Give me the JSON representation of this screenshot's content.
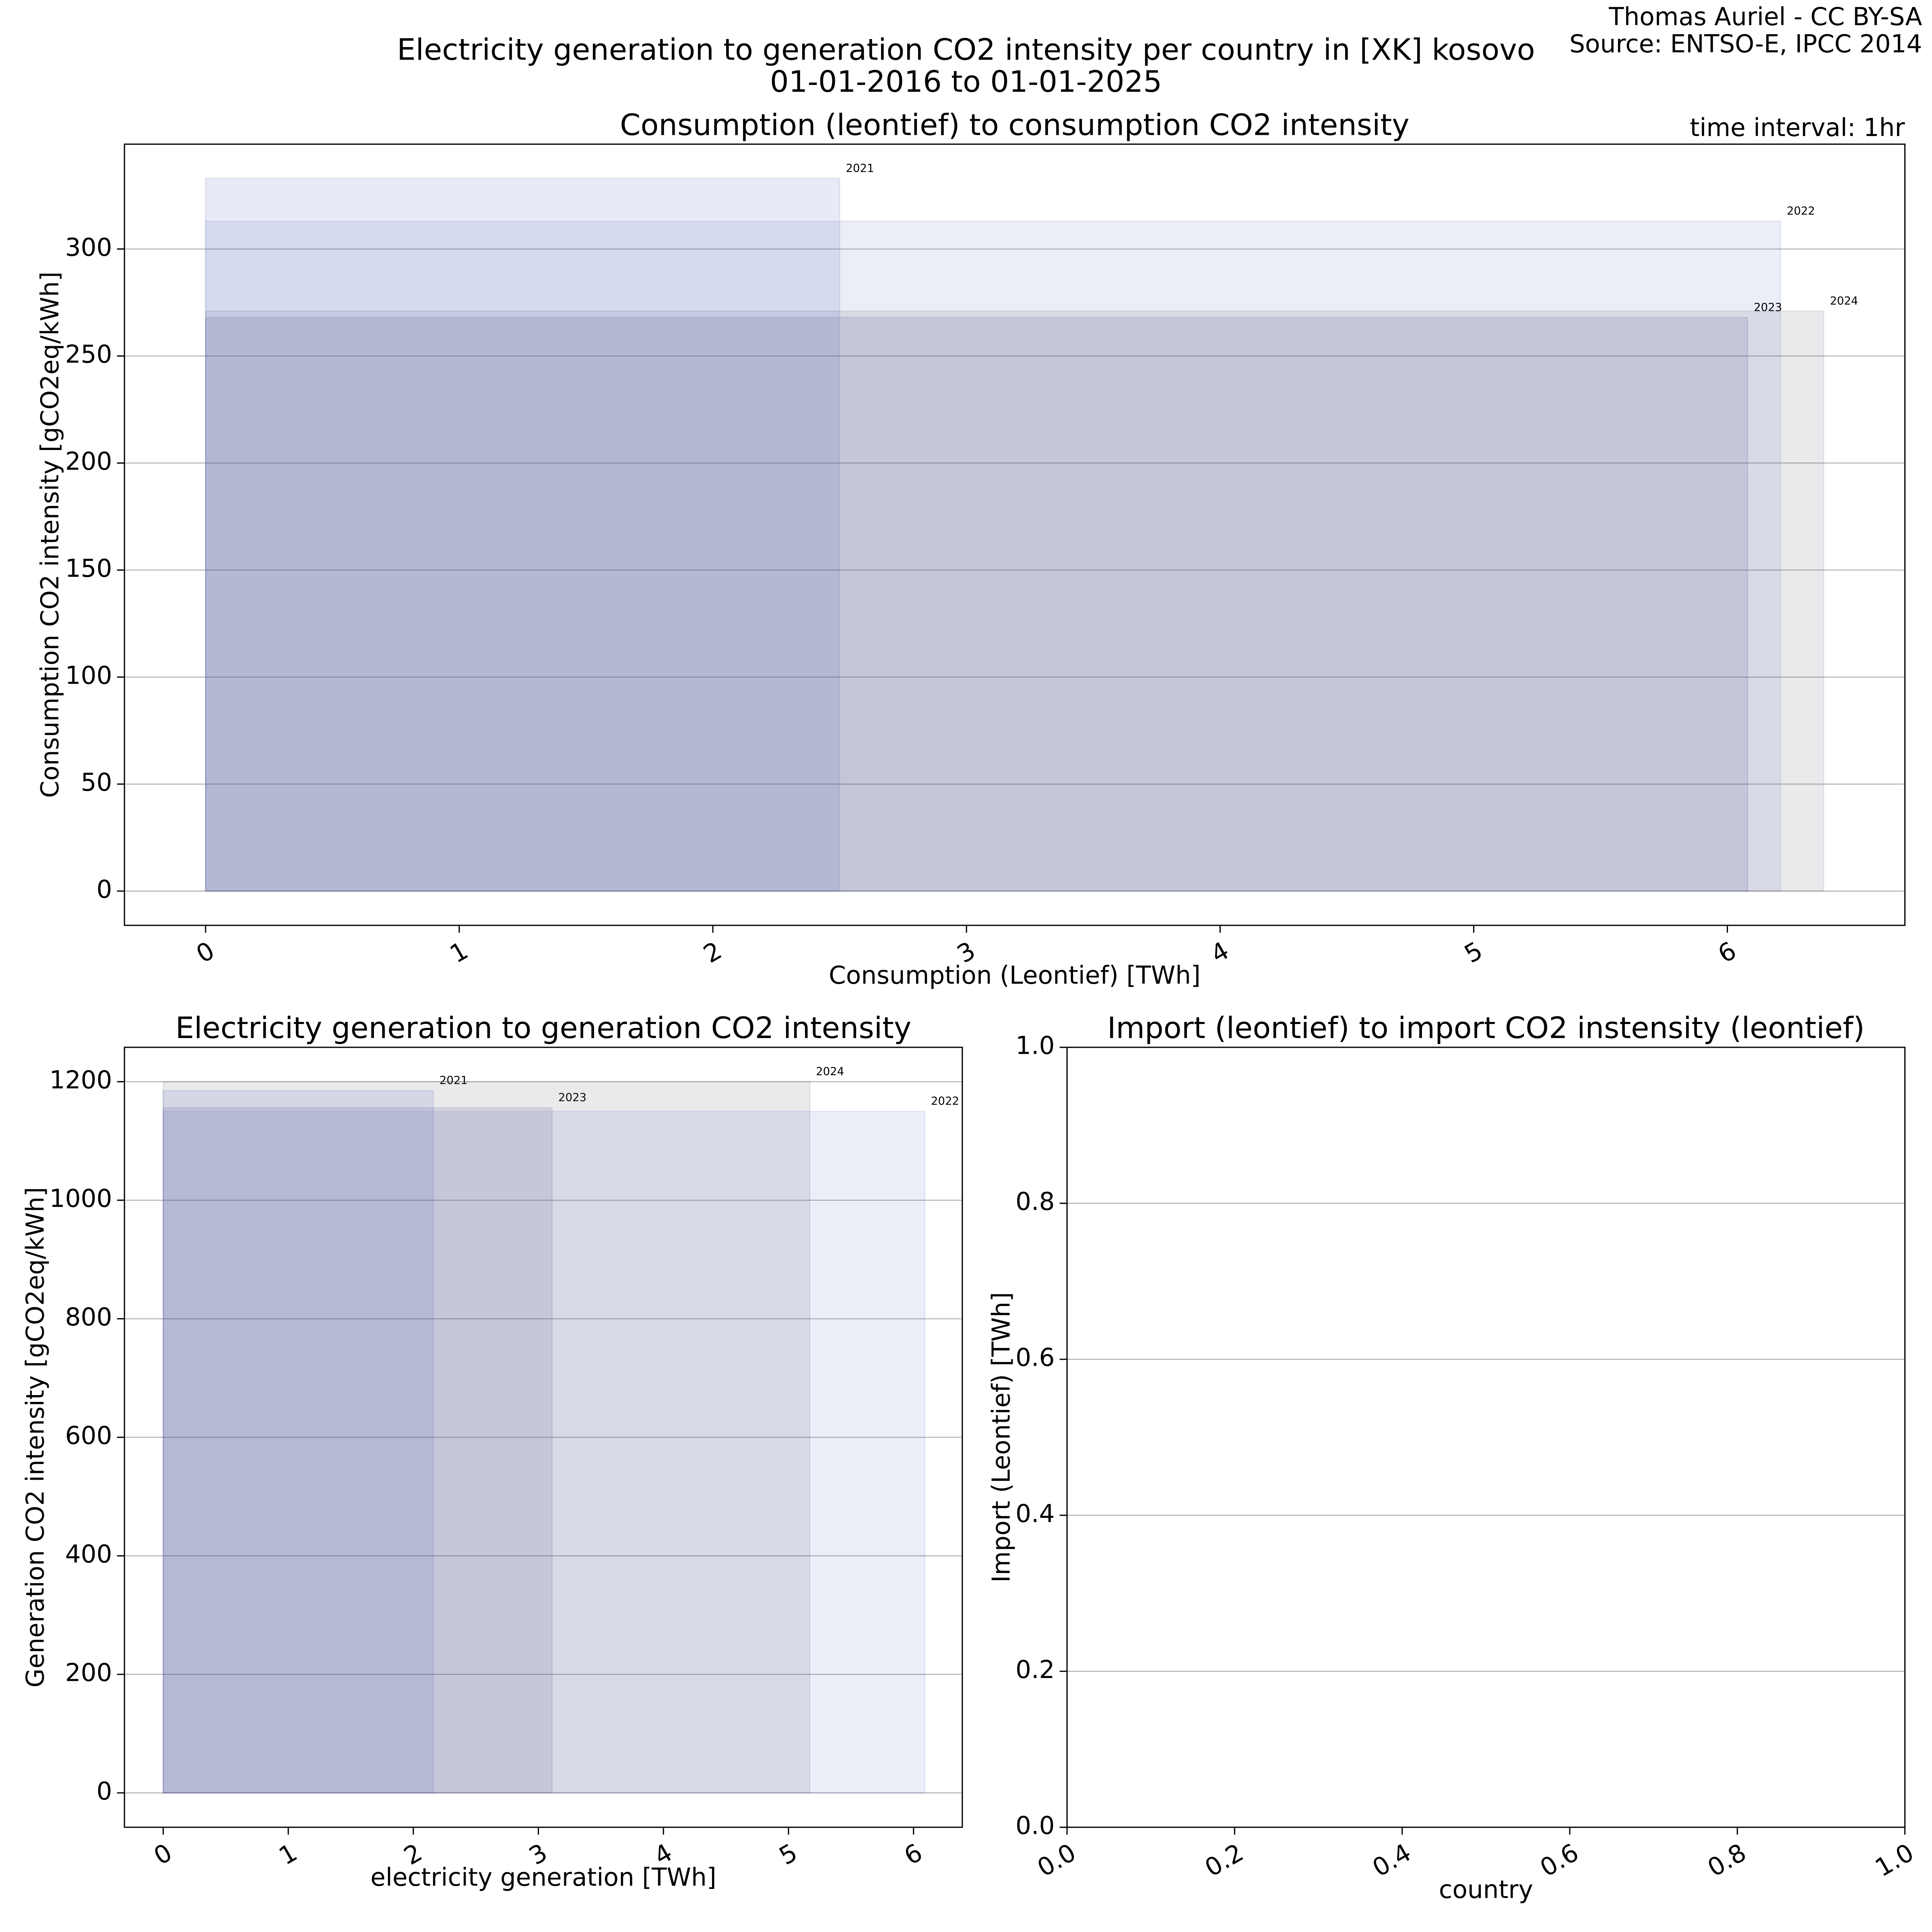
{
  "title": "Electricity generation to generation CO2 intensity per country in [XK] kosovo",
  "subtitle": "01-01-2016 to 01-01-2025",
  "credit": "Thomas Auriel - CC BY-SA",
  "source": "Source: ENTSO-E, IPCC 2014",
  "time_interval": "time interval: 1hr",
  "chart_data": [
    {
      "type": "bar",
      "title": "Consumption (leontief) to consumption CO2 intensity",
      "x_label": "Consumption (Leontief) [TWh]",
      "y_label": "Consumption CO2 intensity [gCO2eq/kWh]",
      "xlim": [
        -0.32,
        6.7
      ],
      "ylim": [
        -16,
        349
      ],
      "xticks": [
        0,
        1,
        2,
        3,
        4,
        5,
        6
      ],
      "yticks": [
        0,
        50,
        100,
        150,
        200,
        250,
        300
      ],
      "grid": true,
      "series": [
        {
          "name": "2021",
          "color": "#3f51b5",
          "x": [
            2.5
          ],
          "values": [
            333
          ]
        },
        {
          "name": "2022",
          "color": "#5c6bc0",
          "x": [
            6.21
          ],
          "values": [
            313
          ]
        },
        {
          "name": "2023",
          "color": "#3a3a7a",
          "x": [
            6.08
          ],
          "values": [
            268
          ]
        },
        {
          "name": "2024",
          "color": "#55556e",
          "x": [
            6.38
          ],
          "values": [
            271
          ]
        }
      ]
    },
    {
      "type": "bar",
      "title": "Electricity generation to generation CO2 intensity",
      "x_label": "electricity generation [TWh]",
      "y_label": "Generation CO2 intensity [gCO2eq/kWh]",
      "xlim": [
        -0.31,
        6.39
      ],
      "ylim": [
        -58,
        1258
      ],
      "xticks": [
        0,
        1,
        2,
        3,
        4,
        5,
        6
      ],
      "yticks": [
        0,
        200,
        400,
        600,
        800,
        1000,
        1200
      ],
      "grid": true,
      "series": [
        {
          "name": "2021",
          "color": "#3f51b5",
          "x": [
            2.16
          ],
          "values": [
            1185
          ]
        },
        {
          "name": "2023",
          "color": "#3a3a7a",
          "x": [
            3.11
          ],
          "values": [
            1156
          ]
        },
        {
          "name": "2024",
          "color": "#55556e",
          "x": [
            5.17
          ],
          "values": [
            1200
          ]
        },
        {
          "name": "2022",
          "color": "#5c6bc0",
          "x": [
            6.09
          ],
          "values": [
            1150
          ]
        }
      ]
    },
    {
      "type": "bar",
      "title": "Import (leontief) to import CO2 instensity (leontief)",
      "x_label": "country",
      "y_label": "Import (Leontief) [TWh]",
      "xlim": [
        0,
        1
      ],
      "ylim": [
        0,
        1
      ],
      "xticks": [
        {
          "value": 0,
          "label": "0.0"
        },
        0.2,
        0.4,
        0.6,
        0.8,
        {
          "value": 1,
          "label": "1.0"
        }
      ],
      "yticks": [
        {
          "value": 0,
          "label": "0.0"
        },
        0.2,
        0.4,
        0.6,
        0.8,
        {
          "value": 1,
          "label": "1.0"
        }
      ],
      "grid": true,
      "series": []
    }
  ]
}
